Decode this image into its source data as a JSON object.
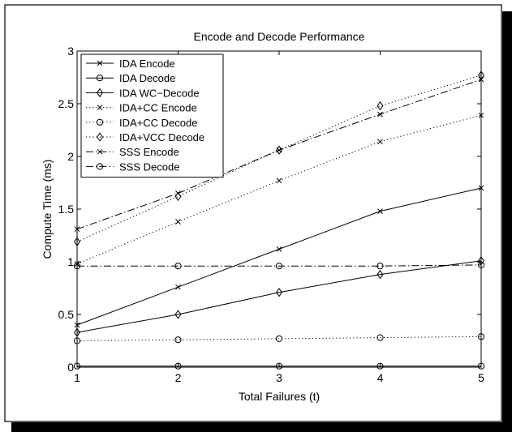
{
  "chart_data": {
    "type": "line",
    "title": "Encode and Decode Performance",
    "xlabel": "Total Failures (t)",
    "ylabel": "Compute Time (ms)",
    "x": [
      1,
      2,
      3,
      4,
      5
    ],
    "xlim": [
      1,
      5
    ],
    "ylim": [
      0,
      3
    ],
    "xticks": [
      "1",
      "2",
      "3",
      "4",
      "5"
    ],
    "yticks": [
      "0",
      "0.5",
      "1",
      "1.5",
      "2",
      "2.5",
      "3"
    ],
    "ytick_values": [
      0,
      0.5,
      1,
      1.5,
      2,
      2.5,
      3
    ],
    "grid": false,
    "legend_position": "top-left",
    "series": [
      {
        "name": "IDA Encode",
        "values": [
          0.4,
          0.76,
          1.12,
          1.48,
          1.7
        ],
        "line": "solid",
        "marker": "x"
      },
      {
        "name": "IDA Decode",
        "values": [
          0.01,
          0.01,
          0.01,
          0.01,
          0.01
        ],
        "line": "solid",
        "marker": "o"
      },
      {
        "name": "IDA WC−Decode",
        "values": [
          0.33,
          0.5,
          0.71,
          0.88,
          1.01
        ],
        "line": "solid",
        "marker": "d"
      },
      {
        "name": "IDA+CC Encode",
        "values": [
          0.98,
          1.38,
          1.77,
          2.14,
          2.39
        ],
        "line": "dotted",
        "marker": "x"
      },
      {
        "name": "IDA+CC Decode",
        "values": [
          0.25,
          0.26,
          0.27,
          0.28,
          0.29
        ],
        "line": "dotted",
        "marker": "o"
      },
      {
        "name": "IDA+VCC Decode",
        "values": [
          1.19,
          1.62,
          2.06,
          2.48,
          2.77
        ],
        "line": "dotted",
        "marker": "d"
      },
      {
        "name": "SSS Encode",
        "values": [
          1.31,
          1.65,
          2.06,
          2.4,
          2.73
        ],
        "line": "dashdot",
        "marker": "x"
      },
      {
        "name": "SSS Decode",
        "values": [
          0.96,
          0.96,
          0.96,
          0.96,
          0.97
        ],
        "line": "dashdot",
        "marker": "o"
      }
    ]
  }
}
